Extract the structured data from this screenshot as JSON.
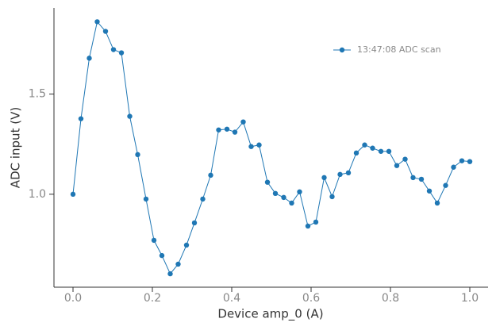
{
  "chart_data": {
    "type": "line",
    "xlabel": "Device amp_0 (A)",
    "ylabel": "ADC input (V)",
    "x": [
      0,
      0.02,
      0.041,
      0.061,
      0.082,
      0.102,
      0.122,
      0.143,
      0.163,
      0.184,
      0.204,
      0.224,
      0.245,
      0.265,
      0.286,
      0.306,
      0.327,
      0.347,
      0.367,
      0.388,
      0.408,
      0.429,
      0.449,
      0.469,
      0.49,
      0.51,
      0.531,
      0.551,
      0.571,
      0.592,
      0.612,
      0.633,
      0.653,
      0.673,
      0.694,
      0.714,
      0.735,
      0.755,
      0.776,
      0.796,
      0.816,
      0.837,
      0.857,
      0.878,
      0.898,
      0.918,
      0.939,
      0.959,
      0.98,
      1.0
    ],
    "series": [
      {
        "name": "13:47:08 ADC scan",
        "color": "#1f77b4",
        "values": [
          1.0,
          1.377,
          1.679,
          1.861,
          1.813,
          1.722,
          1.706,
          1.389,
          1.198,
          0.976,
          0.77,
          0.694,
          0.603,
          0.651,
          0.746,
          0.857,
          0.976,
          1.095,
          1.321,
          1.325,
          1.31,
          1.361,
          1.238,
          1.246,
          1.06,
          1.004,
          0.984,
          0.956,
          1.012,
          0.841,
          0.861,
          1.083,
          0.988,
          1.099,
          1.107,
          1.206,
          1.246,
          1.23,
          1.214,
          1.214,
          1.143,
          1.175,
          1.083,
          1.075,
          1.016,
          0.956,
          1.044,
          1.135,
          1.167,
          1.163
        ]
      }
    ],
    "xlim": [
      -0.048,
      1.046
    ],
    "ylim": [
      0.536,
      1.93
    ],
    "xticks": [
      {
        "value": 0,
        "label": "0.0"
      },
      0.2,
      0.4,
      0.6,
      0.8,
      {
        "value": 1,
        "label": "1.0"
      }
    ],
    "yticks": [
      {
        "value": 1,
        "label": "1.0"
      },
      1.5
    ],
    "legend": "upper right"
  }
}
